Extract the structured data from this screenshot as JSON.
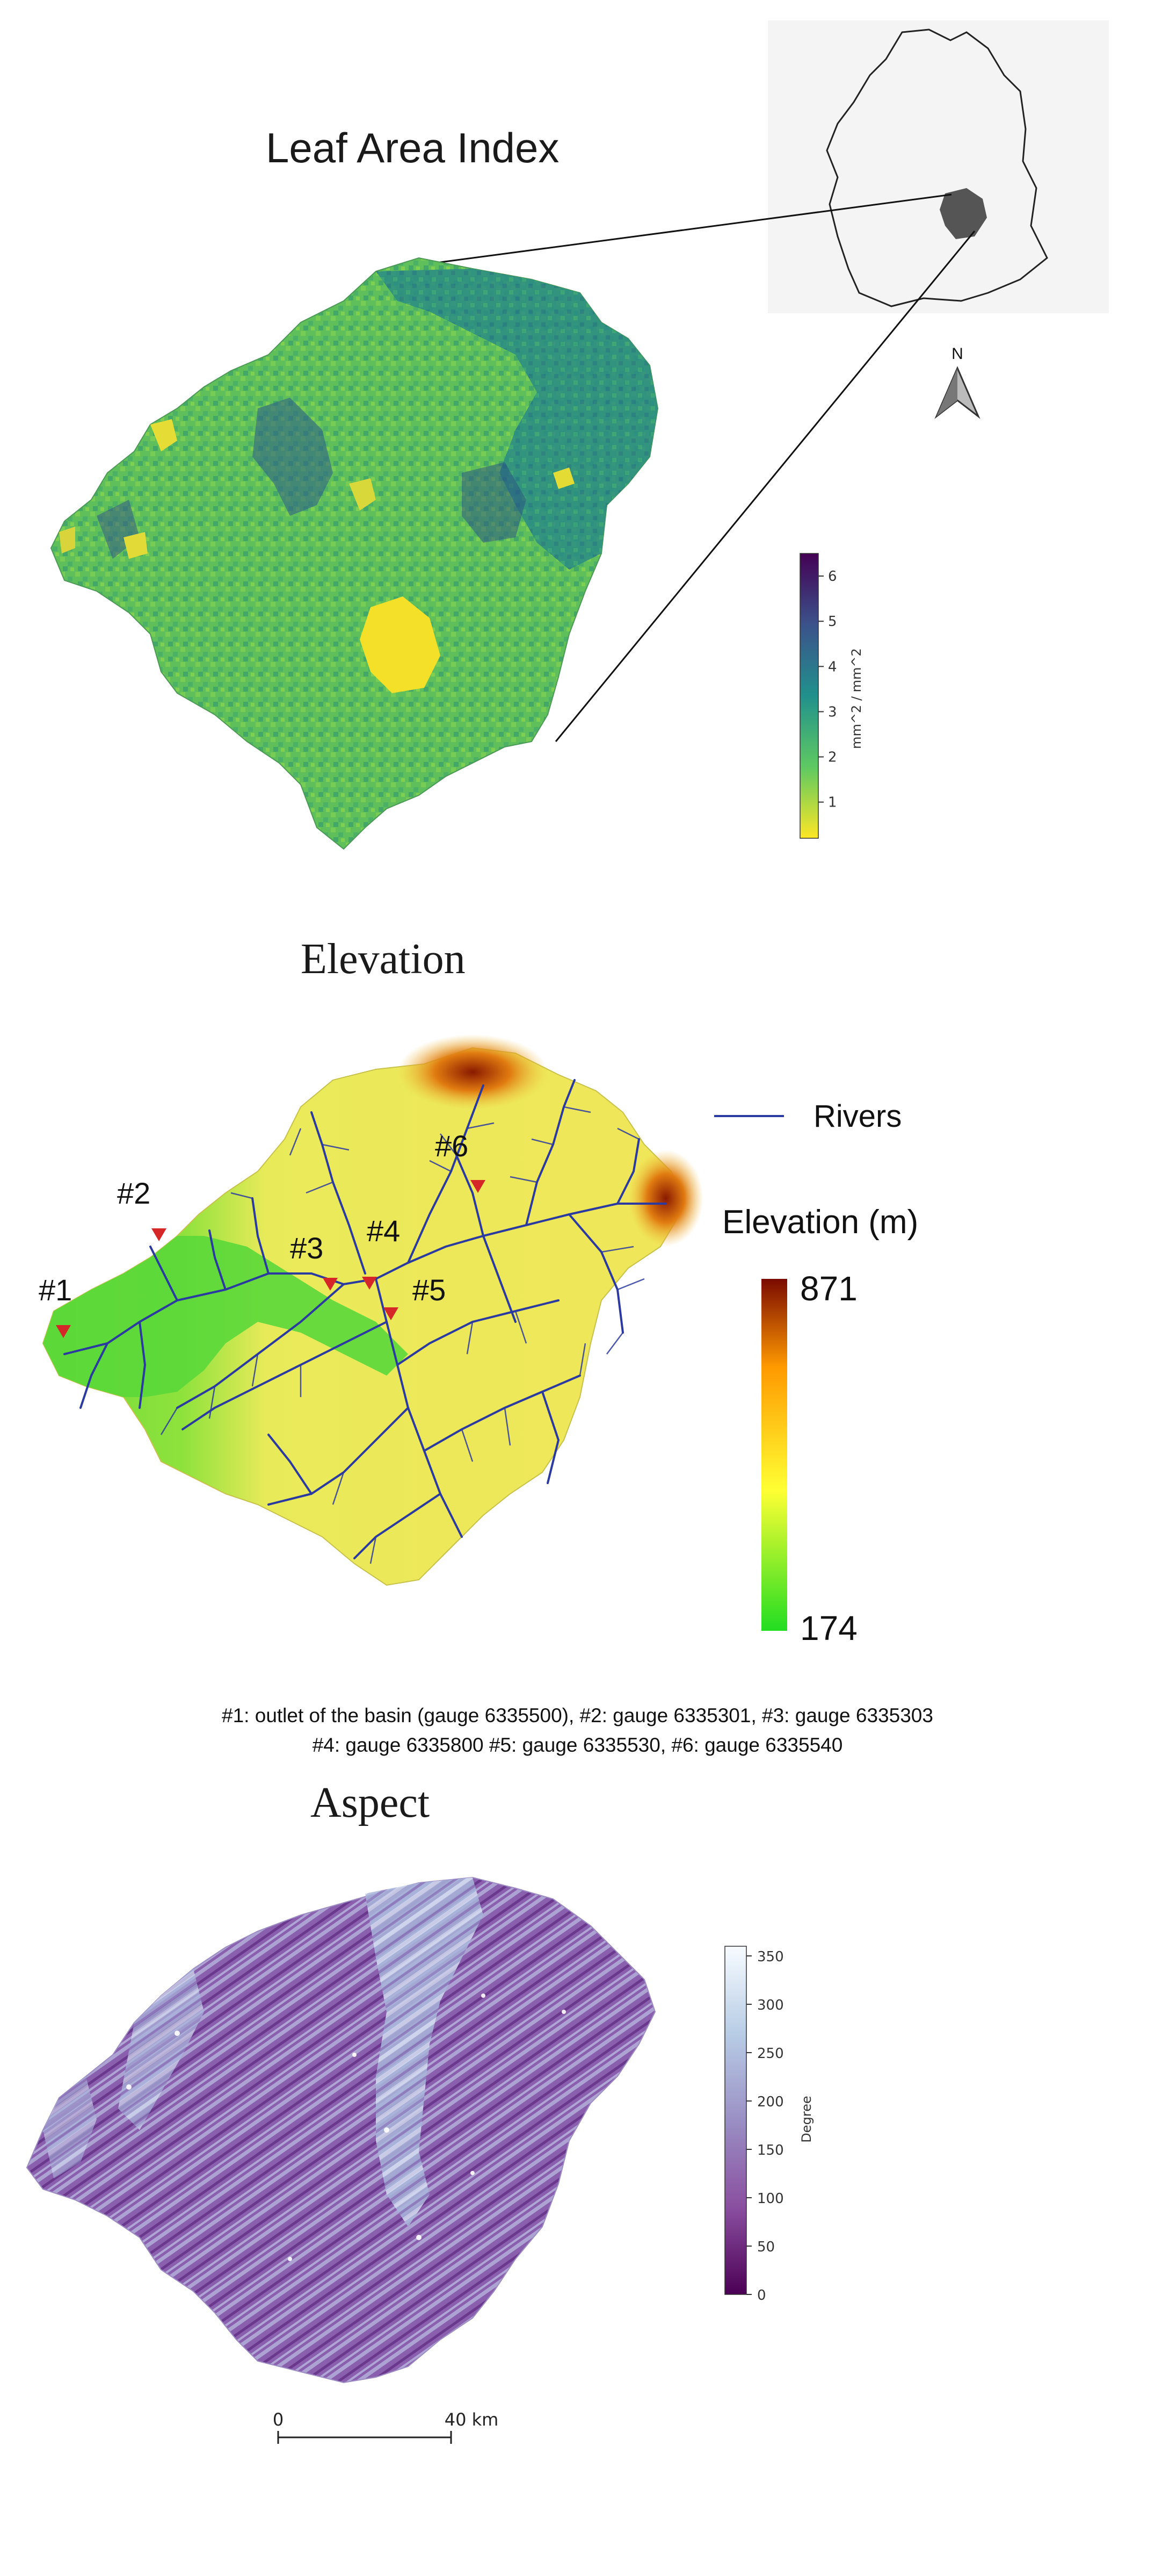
{
  "lai_panel": {
    "title": "Leaf Area Index",
    "north_label": "N",
    "colorbar": {
      "label": "mm^2 / mm^2",
      "ticks": [
        "1",
        "2",
        "3",
        "4",
        "5",
        "6"
      ],
      "range": [
        0.2,
        6.5
      ],
      "colors": [
        "#fde725",
        "#5ec962",
        "#21918c",
        "#3b528b",
        "#440154"
      ]
    }
  },
  "elevation_panel": {
    "title": "Elevation",
    "legend_rivers": "Rivers",
    "legend_title": "Elevation (m)",
    "colorbar_max": "871",
    "colorbar_min": "174",
    "colors": [
      "#22dd22",
      "#ffff33",
      "#ff9900",
      "#7a0a00"
    ],
    "river_color": "#2b3aa0",
    "gauge_marker_color": "#d62728",
    "gauges": [
      {
        "label": "#1"
      },
      {
        "label": "#2"
      },
      {
        "label": "#3"
      },
      {
        "label": "#4"
      },
      {
        "label": "#5"
      },
      {
        "label": "#6"
      }
    ],
    "caption_line1": "#1: outlet of the basin (gauge 6335500), #2: gauge 6335301, #3: gauge 6335303",
    "caption_line2": "#4: gauge 6335800 #5: gauge 6335530, #6: gauge 6335540"
  },
  "aspect_panel": {
    "title": "Aspect",
    "colorbar": {
      "label": "Degree",
      "ticks": [
        "0",
        "50",
        "100",
        "150",
        "200",
        "250",
        "300",
        "350"
      ],
      "range": [
        0,
        360
      ],
      "colors": [
        "#4b0055",
        "#8a4fa0",
        "#9a8fc4",
        "#b8cde6",
        "#f7fbff"
      ]
    },
    "scale_bar": {
      "start": "0",
      "end": "40 km"
    }
  }
}
